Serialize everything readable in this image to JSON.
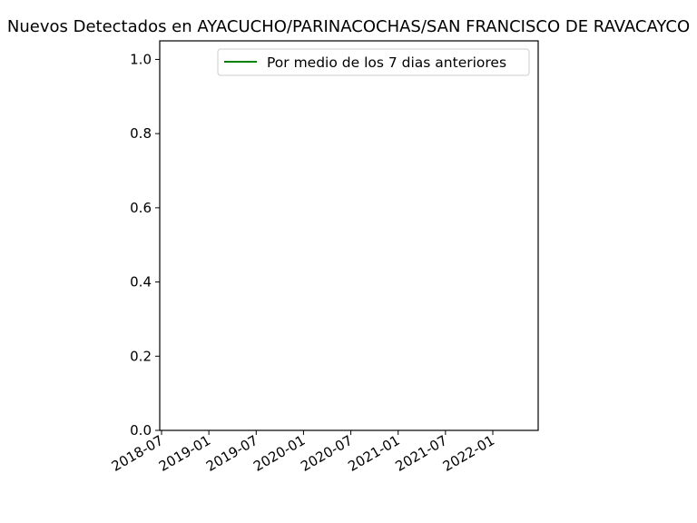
{
  "chart_data": {
    "type": "line",
    "title": "Nuevos Detectados en AYACUCHO/PARINACOCHAS/SAN FRANCISCO DE RAVACAYCO",
    "xlabel": "",
    "ylabel": "",
    "x_tick_labels": [
      "2018-07",
      "2019-01",
      "2019-07",
      "2020-01",
      "2020-07",
      "2021-01",
      "2021-07",
      "2022-01"
    ],
    "y_tick_labels": [
      "0.0",
      "0.2",
      "0.4",
      "0.6",
      "0.8",
      "1.0"
    ],
    "ylim": [
      0,
      1.05
    ],
    "xlim": [
      "2018-07",
      "2022-07"
    ],
    "grid": false,
    "legend_location": "upper right",
    "series": [
      {
        "name": "Por medio de los 7 dias anteriores",
        "color": "#008000",
        "x": [],
        "y": []
      }
    ]
  }
}
